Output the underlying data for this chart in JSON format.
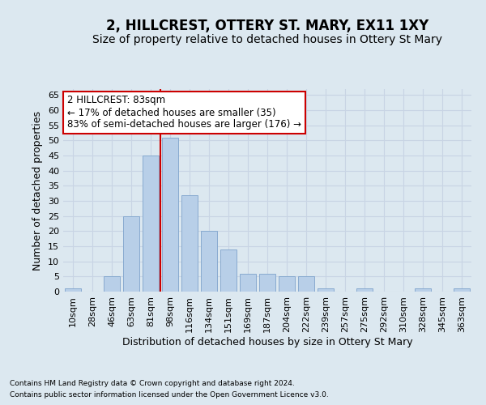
{
  "title": "2, HILLCREST, OTTERY ST. MARY, EX11 1XY",
  "subtitle": "Size of property relative to detached houses in Ottery St Mary",
  "xlabel": "Distribution of detached houses by size in Ottery St Mary",
  "ylabel": "Number of detached properties",
  "footnote1": "Contains HM Land Registry data © Crown copyright and database right 2024.",
  "footnote2": "Contains public sector information licensed under the Open Government Licence v3.0.",
  "categories": [
    "10sqm",
    "28sqm",
    "46sqm",
    "63sqm",
    "81sqm",
    "98sqm",
    "116sqm",
    "134sqm",
    "151sqm",
    "169sqm",
    "187sqm",
    "204sqm",
    "222sqm",
    "239sqm",
    "257sqm",
    "275sqm",
    "292sqm",
    "310sqm",
    "328sqm",
    "345sqm",
    "363sqm"
  ],
  "values": [
    1,
    0,
    5,
    25,
    45,
    51,
    32,
    20,
    14,
    6,
    6,
    5,
    5,
    1,
    0,
    1,
    0,
    0,
    1,
    0,
    1
  ],
  "bar_color": "#b8cfe8",
  "bar_edge_color": "#88aad0",
  "grid_color": "#c8d4e4",
  "background_color": "#dce8f0",
  "ylim": [
    0,
    67
  ],
  "yticks": [
    0,
    5,
    10,
    15,
    20,
    25,
    30,
    35,
    40,
    45,
    50,
    55,
    60,
    65
  ],
  "vline_x_index": 4,
  "vline_color": "#cc0000",
  "annotation_title": "2 HILLCREST: 83sqm",
  "annotation_line1": "← 17% of detached houses are smaller (35)",
  "annotation_line2": "83% of semi-detached houses are larger (176) →",
  "annotation_box_color": "#ffffff",
  "annotation_box_edge_color": "#cc0000",
  "title_fontsize": 12,
  "subtitle_fontsize": 10,
  "xlabel_fontsize": 9,
  "ylabel_fontsize": 9,
  "tick_fontsize": 8,
  "annotation_fontsize": 8.5,
  "footnote_fontsize": 6.5
}
